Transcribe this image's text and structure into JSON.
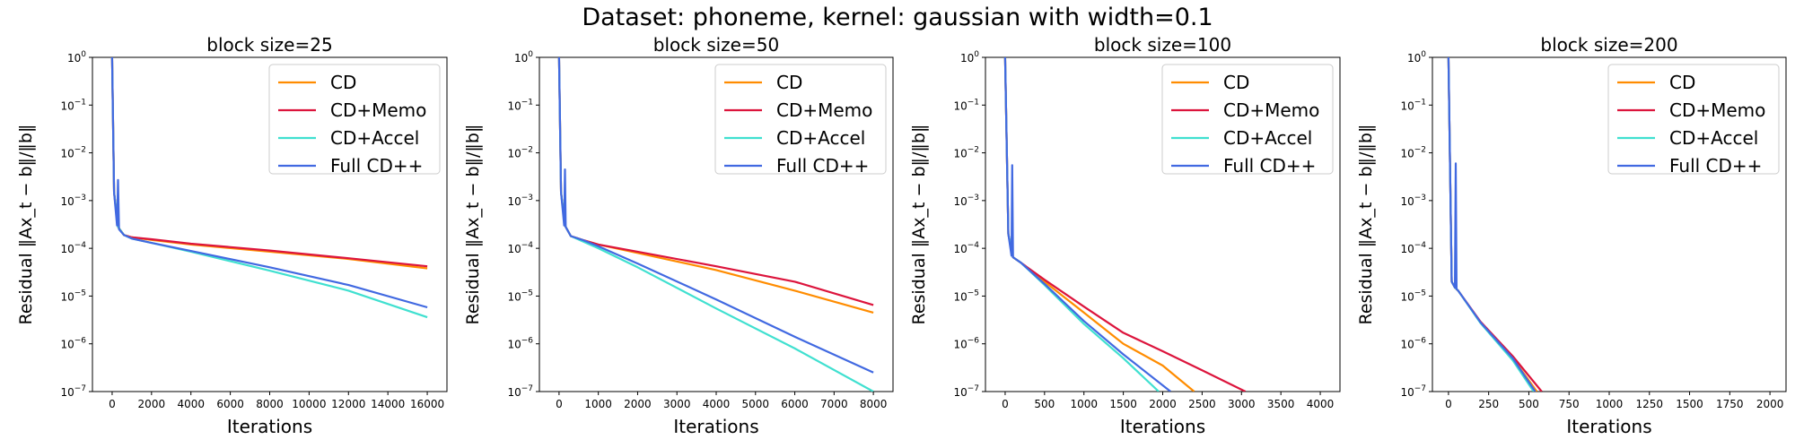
{
  "figure": {
    "title": "Dataset: phoneme, kernel: gaussian with width=0.1"
  },
  "colors": {
    "CD": "#ff8c00",
    "CD+Memo": "#dc143c",
    "CD+Accel": "#40e0d0",
    "Full CD++": "#4169e1"
  },
  "chart_data": [
    {
      "type": "line",
      "title": "block size=25",
      "xlabel": "Iterations",
      "ylabel": "Residual ‖Ax_t − b‖/‖b‖",
      "yscale": "log",
      "xlim": [
        -1000,
        17000
      ],
      "ylim": [
        1e-07,
        1
      ],
      "xticks": [
        0,
        2000,
        4000,
        6000,
        8000,
        10000,
        12000,
        14000,
        16000
      ],
      "yticks": [
        1e-07,
        1e-06,
        1e-05,
        0.0001,
        0.001,
        0.01,
        0.1,
        1
      ],
      "legend": "top-right",
      "series": [
        {
          "name": "CD",
          "x": [
            0,
            100,
            300,
            600,
            1000,
            2000,
            4000,
            8000,
            12000,
            16000
          ],
          "y": [
            1,
            0.0015,
            0.00028,
            0.00019,
            0.00017,
            0.00015,
            0.00012,
            8.5e-05,
            6e-05,
            3.8e-05
          ]
        },
        {
          "name": "CD+Memo",
          "x": [
            0,
            100,
            300,
            600,
            1000,
            2000,
            4000,
            8000,
            12000,
            16000
          ],
          "y": [
            1,
            0.0015,
            0.00028,
            0.00019,
            0.00017,
            0.000155,
            0.000125,
            9e-05,
            6.2e-05,
            4.2e-05
          ]
        },
        {
          "name": "CD+Accel",
          "x": [
            0,
            100,
            300,
            600,
            1000,
            2000,
            4000,
            8000,
            12000,
            16000
          ],
          "y": [
            1,
            0.0015,
            0.00028,
            0.00019,
            0.00016,
            0.00013,
            8.5e-05,
            3.4e-05,
            1.3e-05,
            3.6e-06
          ]
        },
        {
          "name": "Full CD++",
          "x": [
            0,
            100,
            250,
            300,
            350,
            600,
            1000,
            2000,
            4000,
            8000,
            12000,
            16000
          ],
          "y": [
            1,
            0.0015,
            0.0003,
            0.0027,
            0.00025,
            0.00019,
            0.00016,
            0.00013,
            8.8e-05,
            4e-05,
            1.7e-05,
            5.8e-06
          ]
        }
      ]
    },
    {
      "type": "line",
      "title": "block size=50",
      "xlabel": "Iterations",
      "ylabel": "Residual ‖Ax_t − b‖/‖b‖",
      "yscale": "log",
      "xlim": [
        -500,
        8500
      ],
      "ylim": [
        1e-07,
        1
      ],
      "xticks": [
        0,
        1000,
        2000,
        3000,
        4000,
        5000,
        6000,
        7000,
        8000
      ],
      "yticks": [
        1e-07,
        1e-06,
        1e-05,
        0.0001,
        0.001,
        0.01,
        0.1,
        1
      ],
      "legend": "top-right",
      "series": [
        {
          "name": "CD",
          "x": [
            0,
            50,
            150,
            300,
            600,
            1000,
            2000,
            4000,
            6000,
            8000
          ],
          "y": [
            1,
            0.0015,
            0.0003,
            0.00018,
            0.00015,
            0.00012,
            8e-05,
            3.5e-05,
            1.3e-05,
            4.5e-06
          ]
        },
        {
          "name": "CD+Memo",
          "x": [
            0,
            50,
            150,
            300,
            600,
            1000,
            2000,
            4000,
            6000,
            8000
          ],
          "y": [
            1,
            0.0015,
            0.0003,
            0.00018,
            0.00015,
            0.00012,
            8.5e-05,
            4.2e-05,
            2e-05,
            6.5e-06
          ]
        },
        {
          "name": "CD+Accel",
          "x": [
            0,
            50,
            150,
            300,
            600,
            1000,
            2000,
            4000,
            6000,
            8000
          ],
          "y": [
            1,
            0.0015,
            0.0003,
            0.00018,
            0.00014,
            0.0001,
            4e-05,
            5.5e-06,
            8e-07,
            1e-07
          ]
        },
        {
          "name": "Full CD++",
          "x": [
            0,
            50,
            130,
            150,
            170,
            300,
            600,
            1000,
            2000,
            4000,
            6000,
            8000
          ],
          "y": [
            1,
            0.0015,
            0.0003,
            0.0045,
            0.00028,
            0.00018,
            0.00015,
            0.00011,
            4.8e-05,
            8.5e-06,
            1.4e-06,
            2.5e-07
          ]
        }
      ]
    },
    {
      "type": "line",
      "title": "block size=100",
      "xlabel": "Iterations",
      "ylabel": "Residual ‖Ax_t − b‖/‖b‖",
      "yscale": "log",
      "xlim": [
        -250,
        4250
      ],
      "ylim": [
        1e-07,
        1
      ],
      "xticks": [
        0,
        500,
        1000,
        1500,
        2000,
        2500,
        3000,
        3500,
        4000
      ],
      "yticks": [
        1e-07,
        1e-06,
        1e-05,
        0.0001,
        0.001,
        0.01,
        0.1,
        1
      ],
      "legend": "top-right",
      "series": [
        {
          "name": "CD",
          "x": [
            0,
            40,
            100,
            200,
            500,
            1000,
            1500,
            2000,
            2400
          ],
          "y": [
            1,
            0.0002,
            6.5e-05,
            5e-05,
            2e-05,
            4.5e-06,
            1e-06,
            3.5e-07,
            1e-07
          ]
        },
        {
          "name": "CD+Memo",
          "x": [
            0,
            40,
            100,
            200,
            500,
            1000,
            1500,
            2000,
            2500,
            3050
          ],
          "y": [
            1,
            0.0002,
            6.5e-05,
            5e-05,
            2.2e-05,
            6e-06,
            1.7e-06,
            7e-07,
            2.8e-07,
            1e-07
          ]
        },
        {
          "name": "CD+Accel",
          "x": [
            0,
            40,
            100,
            200,
            500,
            1000,
            1500,
            1950
          ],
          "y": [
            1,
            0.0002,
            6.5e-05,
            5e-05,
            1.7e-05,
            2.6e-06,
            5e-07,
            1e-07
          ]
        },
        {
          "name": "Full CD++",
          "x": [
            0,
            40,
            80,
            90,
            100,
            200,
            500,
            1000,
            1500,
            2100
          ],
          "y": [
            1,
            0.0002,
            7e-05,
            0.0055,
            6.5e-05,
            5e-05,
            1.8e-05,
            3e-06,
            6e-07,
            1e-07
          ]
        }
      ]
    },
    {
      "type": "line",
      "title": "block size=200",
      "xlabel": "Iterations",
      "ylabel": "Residual ‖Ax_t − b‖/‖b‖",
      "yscale": "log",
      "xlim": [
        -100,
        2100
      ],
      "ylim": [
        1e-07,
        1
      ],
      "xticks": [
        0,
        250,
        500,
        750,
        1000,
        1250,
        1500,
        1750,
        2000
      ],
      "yticks": [
        1e-07,
        1e-06,
        1e-05,
        0.0001,
        0.001,
        0.01,
        0.1,
        1
      ],
      "legend": "top-right",
      "series": [
        {
          "name": "CD",
          "x": [
            0,
            20,
            40,
            60,
            200,
            400,
            550
          ],
          "y": [
            1,
            2e-05,
            1.5e-05,
            1.3e-05,
            2.8e-06,
            5e-07,
            1e-07
          ]
        },
        {
          "name": "CD+Memo",
          "x": [
            0,
            20,
            40,
            60,
            200,
            400,
            580
          ],
          "y": [
            1,
            2e-05,
            1.5e-05,
            1.3e-05,
            2.9e-06,
            5.5e-07,
            1e-07
          ]
        },
        {
          "name": "CD+Accel",
          "x": [
            0,
            20,
            40,
            60,
            200,
            400,
            530
          ],
          "y": [
            1,
            2e-05,
            1.5e-05,
            1.3e-05,
            2.7e-06,
            4.5e-07,
            1e-07
          ]
        },
        {
          "name": "Full CD++",
          "x": [
            0,
            20,
            40,
            45,
            50,
            60,
            200,
            400,
            540
          ],
          "y": [
            1,
            2e-05,
            1.5e-05,
            0.006,
            1.4e-05,
            1.3e-05,
            2.8e-06,
            5e-07,
            1e-07
          ]
        }
      ]
    }
  ]
}
